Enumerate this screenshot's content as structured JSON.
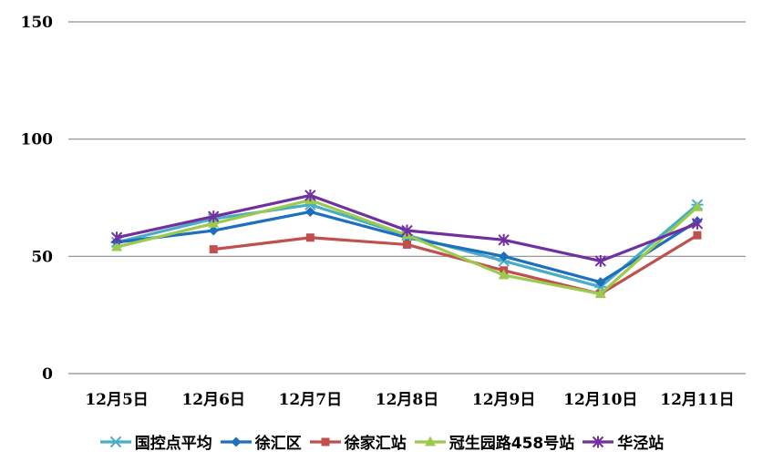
{
  "chart_data": {
    "type": "line",
    "title": "",
    "xlabel": "",
    "ylabel": "",
    "categories": [
      "12月5日",
      "12月6日",
      "12月7日",
      "12月8日",
      "12月9日",
      "12月10日",
      "12月11日"
    ],
    "ylim": [
      0,
      150
    ],
    "yticks": [
      "0",
      "50",
      "100",
      "150"
    ],
    "grid": "horizontal",
    "legend_position": "bottom",
    "series": [
      {
        "name": "国控点平均",
        "color": "#4BACC6",
        "marker": "asterisk-x",
        "values": [
          56,
          66,
          72,
          59,
          48,
          37,
          72
        ]
      },
      {
        "name": "徐汇区",
        "color": "#1F6FBF",
        "marker": "diamond",
        "values": [
          56,
          61,
          69,
          58,
          50,
          39,
          65
        ]
      },
      {
        "name": "徐家汇站",
        "color": "#C0504D",
        "marker": "square",
        "values": [
          null,
          53,
          58,
          55,
          44,
          34,
          59
        ]
      },
      {
        "name": "冠生园路458号站",
        "color": "#9BCB4D",
        "marker": "triangle",
        "values": [
          54,
          64,
          74,
          59,
          42,
          34,
          71
        ]
      },
      {
        "name": "华泾站",
        "color": "#7030A0",
        "marker": "asterisk",
        "values": [
          58,
          67,
          76,
          61,
          57,
          48,
          64
        ]
      }
    ]
  }
}
